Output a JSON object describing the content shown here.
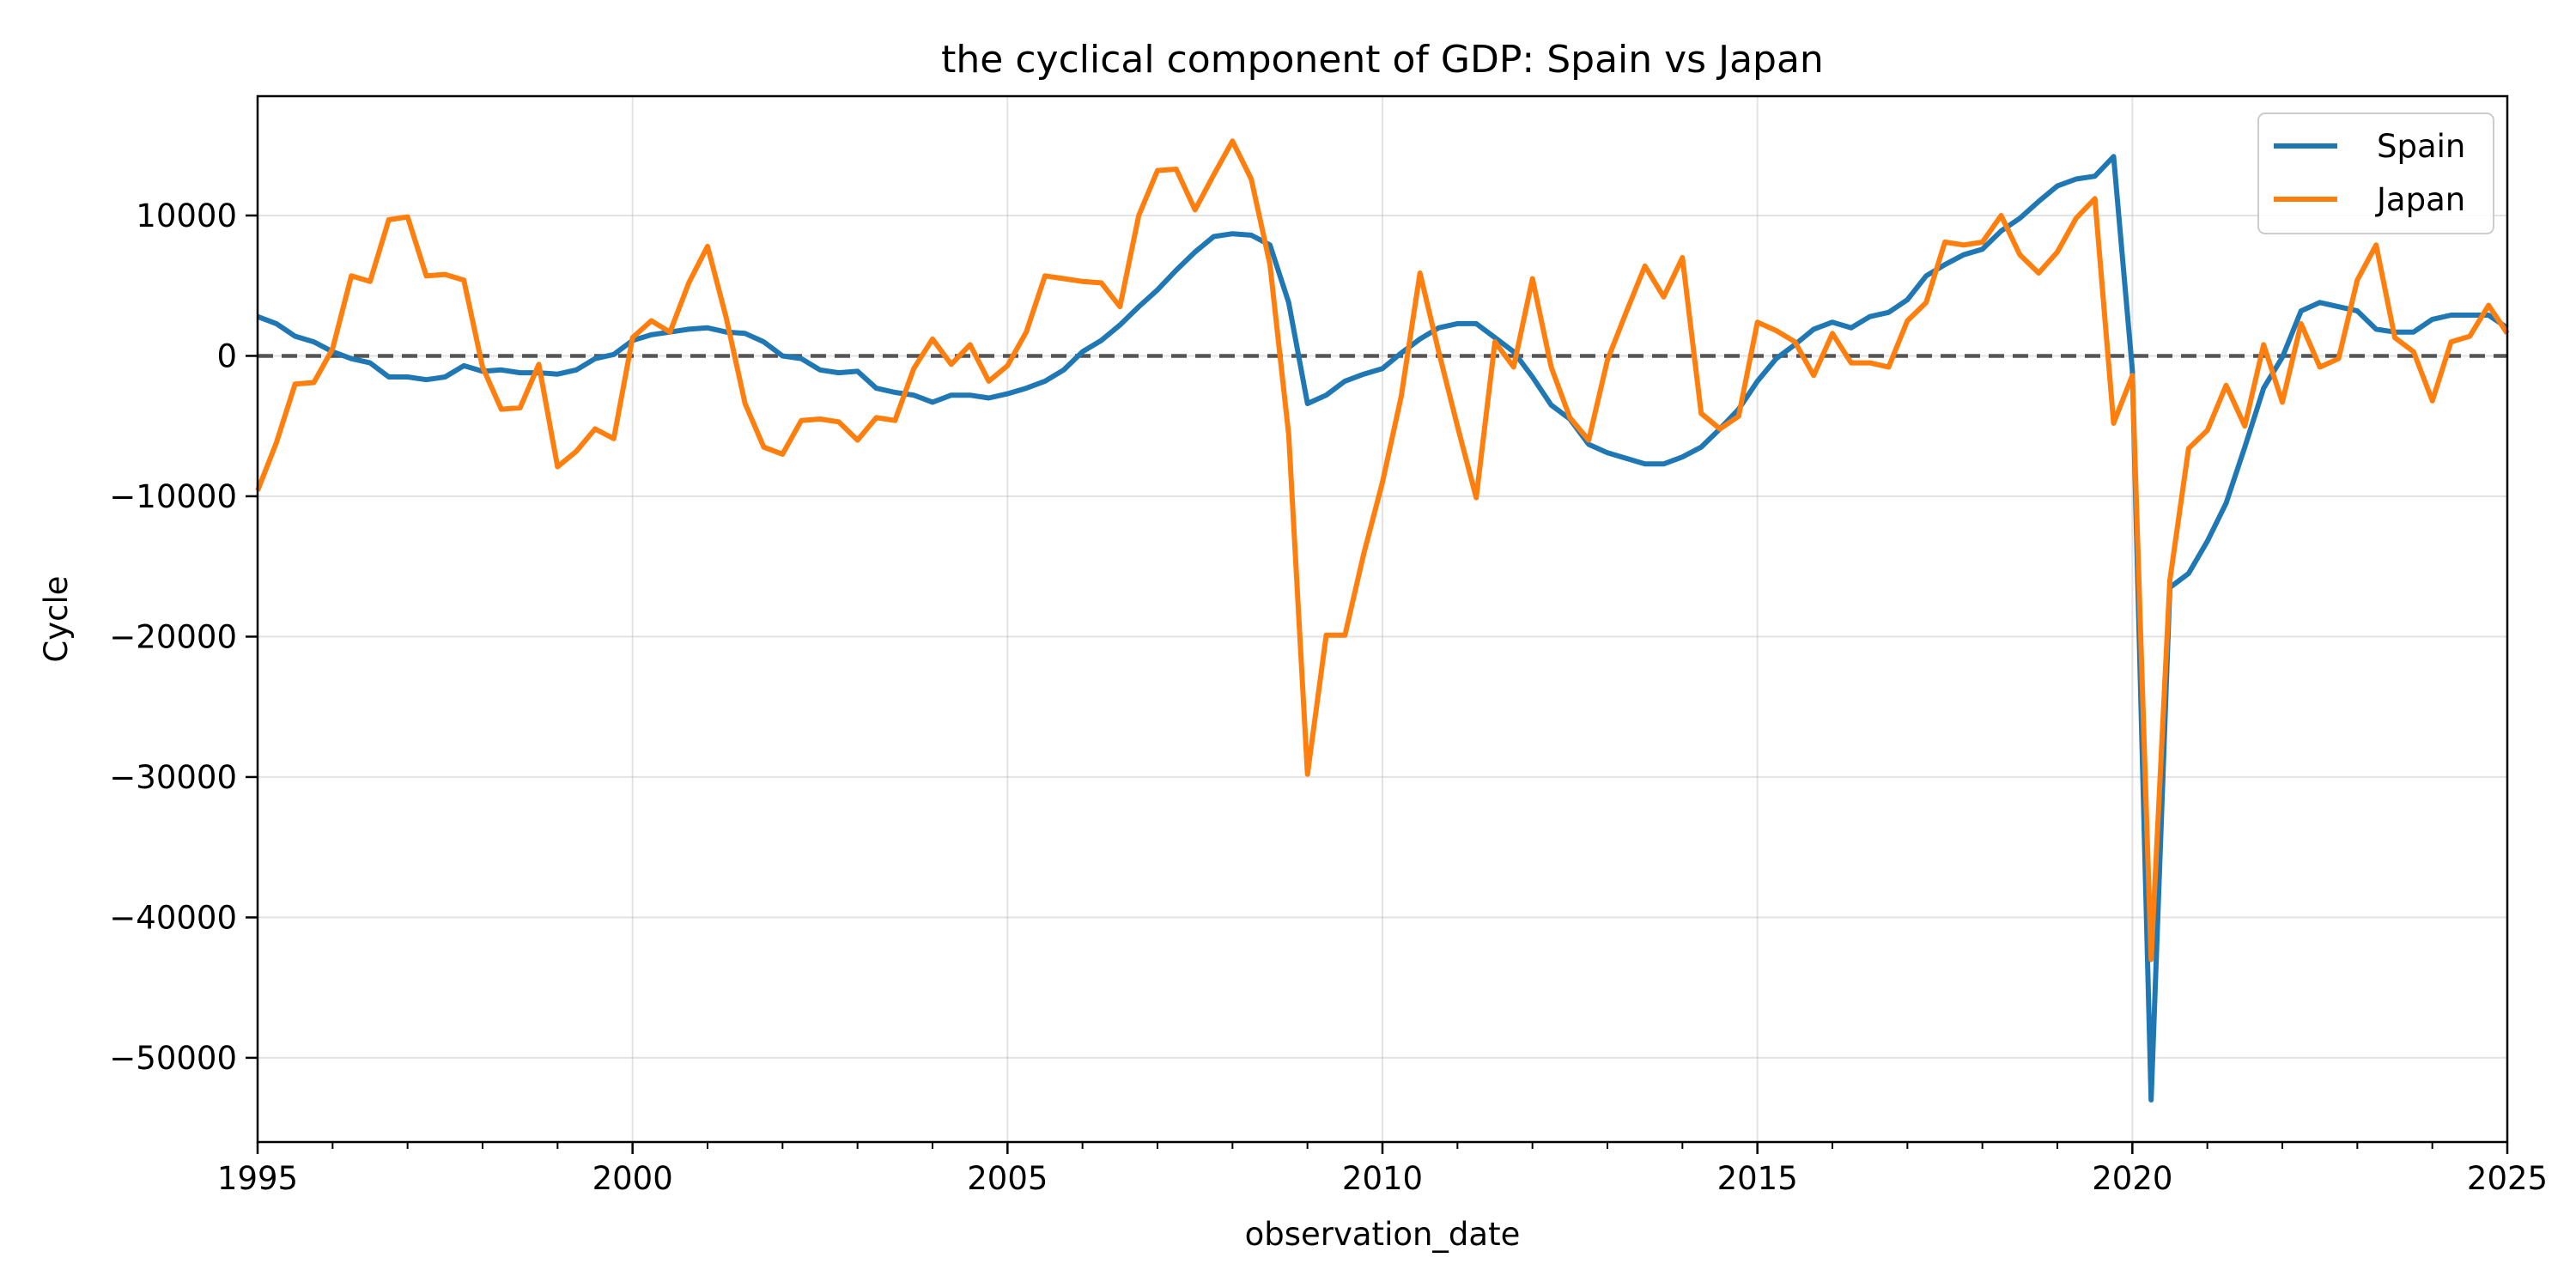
{
  "chart_data": {
    "type": "line",
    "title": "the cyclical component of GDP: Spain vs Japan",
    "xlabel": "observation_date",
    "ylabel": "Cycle",
    "xlim": [
      1995,
      2025
    ],
    "ylim": [
      -56000,
      18500
    ],
    "x_ticks": [
      {
        "value": 1995,
        "label": "1995"
      },
      {
        "value": 2000,
        "label": "2000"
      },
      {
        "value": 2005,
        "label": "2005"
      },
      {
        "value": 2010,
        "label": "2010"
      },
      {
        "value": 2015,
        "label": "2015"
      },
      {
        "value": 2020,
        "label": "2020"
      },
      {
        "value": 2025,
        "label": "2025"
      }
    ],
    "y_ticks": [
      {
        "value": 10000,
        "label": "10000"
      },
      {
        "value": 0,
        "label": "0"
      },
      {
        "value": -10000,
        "label": "−10000"
      },
      {
        "value": -20000,
        "label": "−20000"
      },
      {
        "value": -30000,
        "label": "−30000"
      },
      {
        "value": -40000,
        "label": "−40000"
      },
      {
        "value": -50000,
        "label": "−50000"
      }
    ],
    "grid": true,
    "reference_line": {
      "value": 0,
      "style": "dashed",
      "color": "#555555"
    },
    "legend": {
      "position": "top-right"
    },
    "series": [
      {
        "name": "Spain",
        "color": "#1f77b4",
        "points": [
          [
            1995.0,
            2800
          ],
          [
            1995.25,
            2300
          ],
          [
            1995.5,
            1400
          ],
          [
            1995.75,
            1000
          ],
          [
            1996.0,
            300
          ],
          [
            1996.25,
            -200
          ],
          [
            1996.5,
            -500
          ],
          [
            1996.75,
            -1500
          ],
          [
            1997.0,
            -1500
          ],
          [
            1997.25,
            -1700
          ],
          [
            1997.5,
            -1500
          ],
          [
            1997.75,
            -700
          ],
          [
            1998.0,
            -1100
          ],
          [
            1998.25,
            -1000
          ],
          [
            1998.5,
            -1200
          ],
          [
            1998.75,
            -1200
          ],
          [
            1999.0,
            -1300
          ],
          [
            1999.25,
            -1000
          ],
          [
            1999.5,
            -200
          ],
          [
            1999.75,
            100
          ],
          [
            2000.0,
            1100
          ],
          [
            2000.25,
            1500
          ],
          [
            2000.5,
            1700
          ],
          [
            2000.75,
            1900
          ],
          [
            2001.0,
            2000
          ],
          [
            2001.25,
            1700
          ],
          [
            2001.5,
            1600
          ],
          [
            2001.75,
            1000
          ],
          [
            2002.0,
            0
          ],
          [
            2002.25,
            -200
          ],
          [
            2002.5,
            -1000
          ],
          [
            2002.75,
            -1200
          ],
          [
            2003.0,
            -1100
          ],
          [
            2003.25,
            -2300
          ],
          [
            2003.5,
            -2600
          ],
          [
            2003.75,
            -2800
          ],
          [
            2004.0,
            -3300
          ],
          [
            2004.25,
            -2800
          ],
          [
            2004.5,
            -2800
          ],
          [
            2004.75,
            -3000
          ],
          [
            2005.0,
            -2700
          ],
          [
            2005.25,
            -2300
          ],
          [
            2005.5,
            -1800
          ],
          [
            2005.75,
            -1000
          ],
          [
            2006.0,
            300
          ],
          [
            2006.25,
            1100
          ],
          [
            2006.5,
            2200
          ],
          [
            2006.75,
            3500
          ],
          [
            2007.0,
            4700
          ],
          [
            2007.25,
            6100
          ],
          [
            2007.5,
            7400
          ],
          [
            2007.75,
            8500
          ],
          [
            2008.0,
            8700
          ],
          [
            2008.25,
            8600
          ],
          [
            2008.5,
            7900
          ],
          [
            2008.75,
            3800
          ],
          [
            2009.0,
            -3400
          ],
          [
            2009.25,
            -2800
          ],
          [
            2009.5,
            -1800
          ],
          [
            2009.75,
            -1300
          ],
          [
            2010.0,
            -900
          ],
          [
            2010.25,
            200
          ],
          [
            2010.5,
            1200
          ],
          [
            2010.75,
            2000
          ],
          [
            2011.0,
            2300
          ],
          [
            2011.25,
            2300
          ],
          [
            2011.5,
            1300
          ],
          [
            2011.75,
            300
          ],
          [
            2012.0,
            -1500
          ],
          [
            2012.25,
            -3500
          ],
          [
            2012.5,
            -4500
          ],
          [
            2012.75,
            -6300
          ],
          [
            2013.0,
            -6900
          ],
          [
            2013.25,
            -7300
          ],
          [
            2013.5,
            -7700
          ],
          [
            2013.75,
            -7700
          ],
          [
            2014.0,
            -7200
          ],
          [
            2014.25,
            -6500
          ],
          [
            2014.5,
            -5200
          ],
          [
            2014.75,
            -3800
          ],
          [
            2015.0,
            -1800
          ],
          [
            2015.25,
            -200
          ],
          [
            2015.5,
            800
          ],
          [
            2015.75,
            1900
          ],
          [
            2016.0,
            2400
          ],
          [
            2016.25,
            2000
          ],
          [
            2016.5,
            2800
          ],
          [
            2016.75,
            3100
          ],
          [
            2017.0,
            4000
          ],
          [
            2017.25,
            5700
          ],
          [
            2017.5,
            6500
          ],
          [
            2017.75,
            7200
          ],
          [
            2018.0,
            7600
          ],
          [
            2018.25,
            8900
          ],
          [
            2018.5,
            9800
          ],
          [
            2018.75,
            11000
          ],
          [
            2019.0,
            12100
          ],
          [
            2019.25,
            12600
          ],
          [
            2019.5,
            12800
          ],
          [
            2019.75,
            14200
          ],
          [
            2020.0,
            -1000
          ],
          [
            2020.25,
            -53000
          ],
          [
            2020.5,
            -16500
          ],
          [
            2020.75,
            -15500
          ],
          [
            2021.0,
            -13200
          ],
          [
            2021.25,
            -10500
          ],
          [
            2021.5,
            -6500
          ],
          [
            2021.75,
            -2300
          ],
          [
            2022.0,
            -100
          ],
          [
            2022.25,
            3200
          ],
          [
            2022.5,
            3800
          ],
          [
            2022.75,
            3500
          ],
          [
            2023.0,
            3200
          ],
          [
            2023.25,
            1900
          ],
          [
            2023.5,
            1700
          ],
          [
            2023.75,
            1700
          ],
          [
            2024.0,
            2600
          ],
          [
            2024.25,
            2900
          ],
          [
            2024.5,
            2900
          ],
          [
            2024.75,
            2900
          ],
          [
            2025.0,
            2000
          ]
        ]
      },
      {
        "name": "Japan",
        "color": "#ff7f0e",
        "points": [
          [
            1995.0,
            -9600
          ],
          [
            1995.25,
            -6200
          ],
          [
            1995.5,
            -2000
          ],
          [
            1995.75,
            -1900
          ],
          [
            1996.0,
            500
          ],
          [
            1996.25,
            5700
          ],
          [
            1996.5,
            5300
          ],
          [
            1996.75,
            9700
          ],
          [
            1997.0,
            9900
          ],
          [
            1997.25,
            5700
          ],
          [
            1997.5,
            5800
          ],
          [
            1997.75,
            5400
          ],
          [
            1998.0,
            -800
          ],
          [
            1998.25,
            -3800
          ],
          [
            1998.5,
            -3700
          ],
          [
            1998.75,
            -600
          ],
          [
            1999.0,
            -7900
          ],
          [
            1999.25,
            -6800
          ],
          [
            1999.5,
            -5200
          ],
          [
            1999.75,
            -5900
          ],
          [
            2000.0,
            1300
          ],
          [
            2000.25,
            2500
          ],
          [
            2000.5,
            1700
          ],
          [
            2000.75,
            5200
          ],
          [
            2001.0,
            7800
          ],
          [
            2001.25,
            2700
          ],
          [
            2001.5,
            -3400
          ],
          [
            2001.75,
            -6500
          ],
          [
            2002.0,
            -7000
          ],
          [
            2002.25,
            -4600
          ],
          [
            2002.5,
            -4500
          ],
          [
            2002.75,
            -4700
          ],
          [
            2003.0,
            -6000
          ],
          [
            2003.25,
            -4400
          ],
          [
            2003.5,
            -4600
          ],
          [
            2003.75,
            -900
          ],
          [
            2004.0,
            1200
          ],
          [
            2004.25,
            -600
          ],
          [
            2004.5,
            800
          ],
          [
            2004.75,
            -1800
          ],
          [
            2005.0,
            -700
          ],
          [
            2005.25,
            1700
          ],
          [
            2005.5,
            5700
          ],
          [
            2005.75,
            5500
          ],
          [
            2006.0,
            5300
          ],
          [
            2006.25,
            5200
          ],
          [
            2006.5,
            3500
          ],
          [
            2006.75,
            10000
          ],
          [
            2007.0,
            13200
          ],
          [
            2007.25,
            13300
          ],
          [
            2007.5,
            10400
          ],
          [
            2007.75,
            12900
          ],
          [
            2008.0,
            15300
          ],
          [
            2008.25,
            12600
          ],
          [
            2008.5,
            6500
          ],
          [
            2008.75,
            -5600
          ],
          [
            2009.0,
            -29800
          ],
          [
            2009.25,
            -19900
          ],
          [
            2009.5,
            -19900
          ],
          [
            2009.75,
            -14100
          ],
          [
            2010.0,
            -9000
          ],
          [
            2010.25,
            -2900
          ],
          [
            2010.5,
            5900
          ],
          [
            2010.75,
            300
          ],
          [
            2011.0,
            -5000
          ],
          [
            2011.25,
            -10100
          ],
          [
            2011.5,
            1000
          ],
          [
            2011.75,
            -800
          ],
          [
            2012.0,
            5500
          ],
          [
            2012.25,
            -800
          ],
          [
            2012.5,
            -4400
          ],
          [
            2012.75,
            -6000
          ],
          [
            2013.0,
            -300
          ],
          [
            2013.25,
            3100
          ],
          [
            2013.5,
            6400
          ],
          [
            2013.75,
            4200
          ],
          [
            2014.0,
            7000
          ],
          [
            2014.25,
            -4100
          ],
          [
            2014.5,
            -5200
          ],
          [
            2014.75,
            -4300
          ],
          [
            2015.0,
            2400
          ],
          [
            2015.25,
            1800
          ],
          [
            2015.5,
            1000
          ],
          [
            2015.75,
            -1400
          ],
          [
            2016.0,
            1600
          ],
          [
            2016.25,
            -500
          ],
          [
            2016.5,
            -500
          ],
          [
            2016.75,
            -800
          ],
          [
            2017.0,
            2500
          ],
          [
            2017.25,
            3800
          ],
          [
            2017.5,
            8100
          ],
          [
            2017.75,
            7900
          ],
          [
            2018.0,
            8100
          ],
          [
            2018.25,
            10000
          ],
          [
            2018.5,
            7200
          ],
          [
            2018.75,
            5900
          ],
          [
            2019.0,
            7400
          ],
          [
            2019.25,
            9800
          ],
          [
            2019.5,
            11200
          ],
          [
            2019.75,
            -4800
          ],
          [
            2020.0,
            -1400
          ],
          [
            2020.25,
            -43000
          ],
          [
            2020.5,
            -16000
          ],
          [
            2020.75,
            -6600
          ],
          [
            2021.0,
            -5300
          ],
          [
            2021.25,
            -2100
          ],
          [
            2021.5,
            -5000
          ],
          [
            2021.75,
            800
          ],
          [
            2022.0,
            -3300
          ],
          [
            2022.25,
            2300
          ],
          [
            2022.5,
            -800
          ],
          [
            2022.75,
            -200
          ],
          [
            2023.0,
            5400
          ],
          [
            2023.25,
            7900
          ],
          [
            2023.5,
            1300
          ],
          [
            2023.75,
            300
          ],
          [
            2024.0,
            -3200
          ],
          [
            2024.25,
            1000
          ],
          [
            2024.5,
            1400
          ],
          [
            2024.75,
            3600
          ],
          [
            2025.0,
            1600
          ]
        ]
      }
    ]
  }
}
